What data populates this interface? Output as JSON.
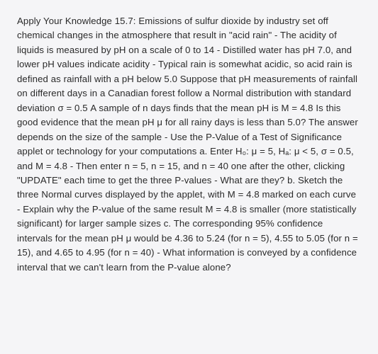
{
  "document": {
    "background_color": "#f5f5f7",
    "text_color": "#2a2a2a",
    "font_size": 13.2,
    "line_height": 1.55,
    "font_weight": 500,
    "body": "Apply Your Knowledge 15.7: Emissions of sulfur dioxide by industry set off chemical changes in the atmosphere that result in \"acid rain\" - The acidity of liquids is measured by pH on a scale of 0 to 14 - Distilled water has pH 7.0, and lower pH values indicate acidity - Typical rain is somewhat acidic, so acid rain is defined as rainfall with a pH below 5.0 Suppose that pH measurements of rainfall on different days in a Canadian forest follow a Normal distribution with standard deviation σ = 0.5 A sample of n days finds that the mean pH is M = 4.8 Is this good evidence that the mean pH μ for all rainy days is less than 5.0? The answer depends on the size of the sample - Use the P-Value of a Test of Significance applet or technology for your computations a. Enter H₀: μ = 5, Hₐ: μ < 5, σ = 0.5, and M = 4.8 - Then enter n = 5, n = 15, and n = 40 one after the other, clicking \"UPDATE\" each time to get the three P-values - What are they? b. Sketch the three Normal curves displayed by the applet, with M = 4.8 marked on each curve - Explain why the P-value of the same result M = 4.8 is smaller (more statistically significant) for larger sample sizes c. The corresponding 95% confidence intervals for the mean pH μ would be 4.36 to 5.24 (for n = 5), 4.55 to 5.05 (for n = 15), and 4.65 to 4.95 (for n = 40) - What information is conveyed by a confidence interval that we can't learn from the P-value alone?"
  }
}
